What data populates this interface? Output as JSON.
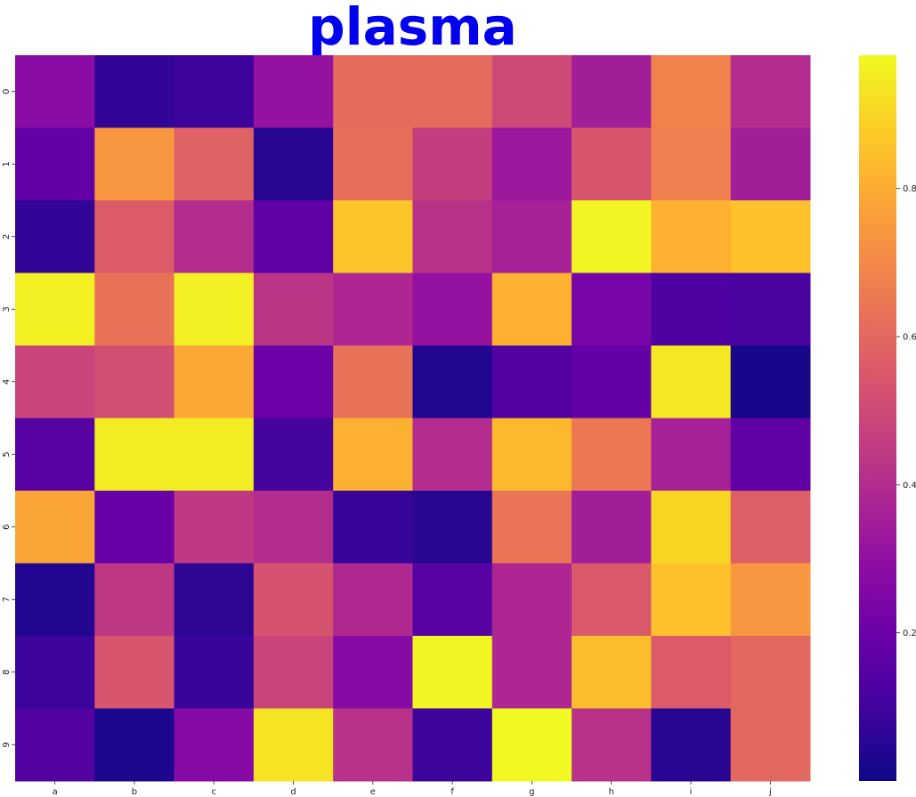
{
  "chart_data": {
    "type": "heatmap",
    "title": "plasma",
    "title_color": "#0000ee",
    "colormap": "plasma",
    "x_categories": [
      "a",
      "b",
      "c",
      "d",
      "e",
      "f",
      "g",
      "h",
      "i",
      "j"
    ],
    "y_categories": [
      "0",
      "1",
      "2",
      "3",
      "4",
      "5",
      "6",
      "7",
      "8",
      "9"
    ],
    "values": [
      [
        0.28,
        0.07,
        0.09,
        0.31,
        0.61,
        0.61,
        0.5,
        0.35,
        0.68,
        0.4
      ],
      [
        0.18,
        0.74,
        0.58,
        0.05,
        0.62,
        0.46,
        0.33,
        0.54,
        0.67,
        0.35
      ],
      [
        0.07,
        0.56,
        0.4,
        0.17,
        0.86,
        0.42,
        0.36,
        0.97,
        0.81,
        0.85
      ],
      [
        0.96,
        0.63,
        0.96,
        0.43,
        0.38,
        0.31,
        0.81,
        0.23,
        0.13,
        0.12
      ],
      [
        0.48,
        0.52,
        0.79,
        0.2,
        0.63,
        0.04,
        0.14,
        0.18,
        0.94,
        0.02
      ],
      [
        0.15,
        0.95,
        0.95,
        0.11,
        0.81,
        0.4,
        0.83,
        0.65,
        0.36,
        0.17
      ],
      [
        0.78,
        0.19,
        0.44,
        0.4,
        0.08,
        0.05,
        0.64,
        0.35,
        0.9,
        0.57
      ],
      [
        0.04,
        0.44,
        0.06,
        0.53,
        0.39,
        0.15,
        0.38,
        0.55,
        0.85,
        0.74
      ],
      [
        0.09,
        0.54,
        0.08,
        0.48,
        0.27,
        0.97,
        0.38,
        0.84,
        0.56,
        0.6
      ],
      [
        0.14,
        0.03,
        0.27,
        0.93,
        0.42,
        0.09,
        0.99,
        0.42,
        0.05,
        0.6
      ]
    ],
    "colorbar": {
      "min": 0.0,
      "max": 0.98,
      "ticks": [
        0.2,
        0.4,
        0.6,
        0.8
      ],
      "tick_labels": [
        "0.2",
        "0.4",
        "0.6",
        "0.8"
      ]
    },
    "grid": false,
    "legend": "none"
  }
}
